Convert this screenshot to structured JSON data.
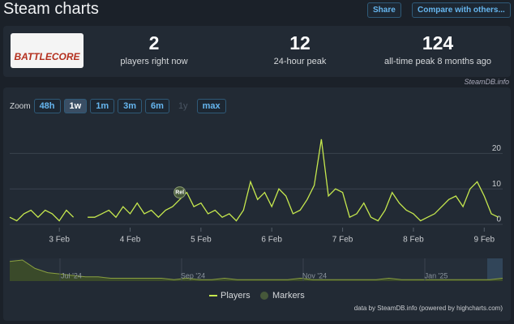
{
  "header": {
    "title": "Steam charts",
    "share": "Share",
    "compare": "Compare with others..."
  },
  "stats": {
    "logo_text": "BATTLECORE",
    "items": [
      {
        "value": 2,
        "label": "players right now"
      },
      {
        "value": 12,
        "label": "24-hour peak"
      },
      {
        "value": 124,
        "label": "all-time peak 8 months ago"
      }
    ],
    "source": "SteamDB.info"
  },
  "zoom": {
    "label": "Zoom",
    "options": [
      "48h",
      "1w",
      "1m",
      "3m",
      "6m",
      "1y",
      "max"
    ]
  },
  "chart_data": {
    "type": "line",
    "x": [
      2.3,
      2.4,
      2.5,
      2.6,
      2.7,
      2.8,
      2.9,
      3.0,
      3.1,
      3.2,
      3.3,
      3.4,
      3.5,
      3.6,
      3.7,
      3.8,
      3.9,
      4.0,
      4.1,
      4.2,
      4.3,
      4.4,
      4.5,
      4.6,
      4.7,
      4.8,
      4.9,
      5.0,
      5.1,
      5.2,
      5.3,
      5.4,
      5.5,
      5.6,
      5.7,
      5.8,
      5.9,
      6.0,
      6.1,
      6.2,
      6.3,
      6.4,
      6.5,
      6.6,
      6.7,
      6.8,
      6.9,
      7.0,
      7.1,
      7.2,
      7.3,
      7.4,
      7.5,
      7.6,
      7.7,
      7.8,
      7.9,
      8.0,
      8.1,
      8.2,
      8.3,
      8.4,
      8.5,
      8.6,
      8.7,
      8.8,
      8.9,
      9.0,
      9.1,
      9.2
    ],
    "series": [
      {
        "name": "Players",
        "color": "#c6e84e",
        "values": [
          2,
          1,
          3,
          4,
          2,
          4,
          3,
          1,
          4,
          2,
          null,
          2,
          2,
          3,
          4,
          2,
          5,
          3,
          6,
          3,
          4,
          2,
          4,
          5,
          7,
          9,
          5,
          6,
          3,
          4,
          2,
          3,
          1,
          4,
          12,
          7,
          9,
          5,
          10,
          8,
          3,
          4,
          7,
          11,
          24,
          8,
          10,
          9,
          2,
          3,
          6,
          2,
          1,
          4,
          9,
          6,
          4,
          3,
          1,
          2,
          3,
          5,
          7,
          8,
          5,
          10,
          12,
          8,
          3,
          2
        ]
      }
    ],
    "markers": {
      "name": "Markers",
      "color": "#46583a",
      "items": [
        {
          "x": 4.7,
          "y": 9,
          "label": "Rel"
        }
      ]
    },
    "xlim": [
      2.3,
      9.26
    ],
    "ylim": [
      0,
      29
    ],
    "xticks": [
      {
        "value": 3,
        "label": "3 Feb"
      },
      {
        "value": 4,
        "label": "4 Feb"
      },
      {
        "value": 5,
        "label": "5 Feb"
      },
      {
        "value": 6,
        "label": "6 Feb"
      },
      {
        "value": 7,
        "label": "7 Feb"
      },
      {
        "value": 8,
        "label": "8 Feb"
      },
      {
        "value": 9,
        "label": "9 Feb"
      }
    ],
    "yticks": [
      0,
      10,
      20
    ],
    "grid": true,
    "navigator": {
      "labels": [
        "Jul '24",
        "Sep '24",
        "Nov '24",
        "Jan '25"
      ],
      "values": [
        14,
        15,
        9,
        6,
        5,
        4,
        3,
        3,
        2,
        2,
        2,
        2,
        2,
        1,
        2,
        1,
        1,
        2,
        1,
        1,
        1,
        1,
        1,
        2,
        1,
        1,
        1,
        1,
        1,
        1,
        2,
        1,
        1,
        1,
        1,
        1,
        1,
        1,
        1,
        2
      ],
      "ylim": [
        0,
        15
      ]
    },
    "credit": "data by SteamDB.info (powered by highcharts.com)"
  }
}
